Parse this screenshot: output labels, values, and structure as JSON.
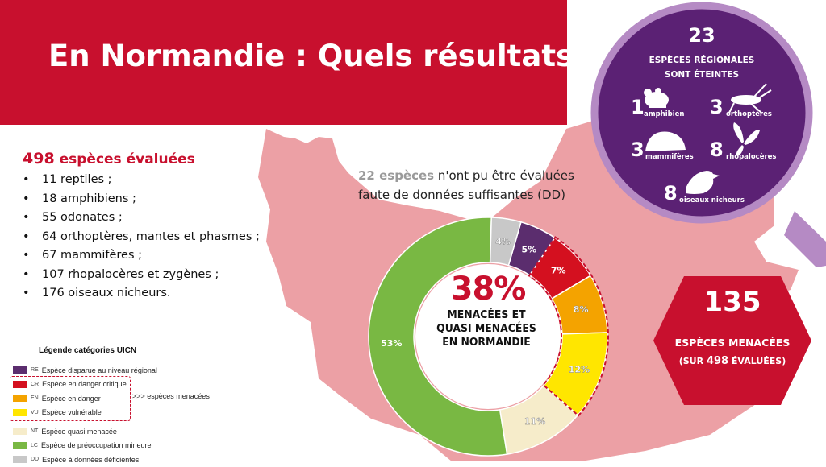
{
  "title": "En Normandie : Quels résultats ?",
  "evaluated": {
    "count": "498",
    "label": "espèces évaluées",
    "items": [
      "11 reptiles ;",
      "18 amphibiens ;",
      "55 odonates ;",
      "64 orthoptères, mantes et phasmes ;",
      "67 mammifères ;",
      "107 rhopalocères et zygènes ;",
      "176 oiseaux nicheurs."
    ]
  },
  "data_deficient": {
    "count": "22 espèces",
    "text_line1": "n'ont pu être évaluées",
    "text_line2": "faute de données suffisantes (DD)"
  },
  "center": {
    "percent": "38%",
    "line1": "MENACÉES ET",
    "line2": "QUASI MENACÉES",
    "line3": "EN NORMANDIE"
  },
  "extinct": {
    "count": "23",
    "line1": "ESPÈCES RÉGIONALES",
    "line2": "SONT ÉTEINTES",
    "items": [
      {
        "num": "1",
        "label": "amphibien",
        "icon": "frog-icon"
      },
      {
        "num": "3",
        "label": "orthoptères",
        "icon": "grasshopper-icon"
      },
      {
        "num": "3",
        "label": "mammifères",
        "icon": "hedgehog-icon"
      },
      {
        "num": "8",
        "label": "rhopalocères",
        "icon": "butterfly-icon"
      },
      {
        "num": "8",
        "label": "oiseaux nicheurs",
        "icon": "bird-icon"
      }
    ]
  },
  "threatened": {
    "count": "135",
    "line1": "ESPÈCES MENACÉES",
    "line2_pre": "(SUR",
    "line2_num": "498",
    "line2_post": "ÉVALUÉES)"
  },
  "legend": {
    "title": "Légende catégories UICN",
    "threat_note": ">>> espèces menacées",
    "items": [
      {
        "code": "RE",
        "label": "Espèce disparue au niveau régional",
        "color": "#5b2d6e"
      },
      {
        "code": "CR",
        "label": "Espèce en danger critique",
        "color": "#d4101f"
      },
      {
        "code": "EN",
        "label": "Espèce en danger",
        "color": "#f4a300"
      },
      {
        "code": "VU",
        "label": "Espèce vulnérable",
        "color": "#ffe600"
      },
      {
        "code": "NT",
        "label": "Espèce quasi menacée",
        "color": "#f6ecca"
      },
      {
        "code": "LC",
        "label": "Espèce de préoccupation mineure",
        "color": "#79b843"
      },
      {
        "code": "DD",
        "label": "Espèce à données déficientes",
        "color": "#c8c8c8"
      }
    ]
  },
  "colors": {
    "brand_red": "#c8102e",
    "purple": "#5b2174",
    "map_pink": "#eca0a5"
  },
  "chart_data": {
    "type": "pie",
    "categories": [
      "RE",
      "CR",
      "EN",
      "VU",
      "NT",
      "LC",
      "DD"
    ],
    "values": [
      5,
      7,
      8,
      12,
      11,
      53,
      4
    ],
    "labels": [
      "5%",
      "7%",
      "8%",
      "12%",
      "11%",
      "53%",
      "4%"
    ],
    "colors": [
      "#5b2d6e",
      "#d4101f",
      "#f4a300",
      "#ffe600",
      "#f6ecca",
      "#79b843",
      "#c8c8c8"
    ],
    "donut": true
  }
}
